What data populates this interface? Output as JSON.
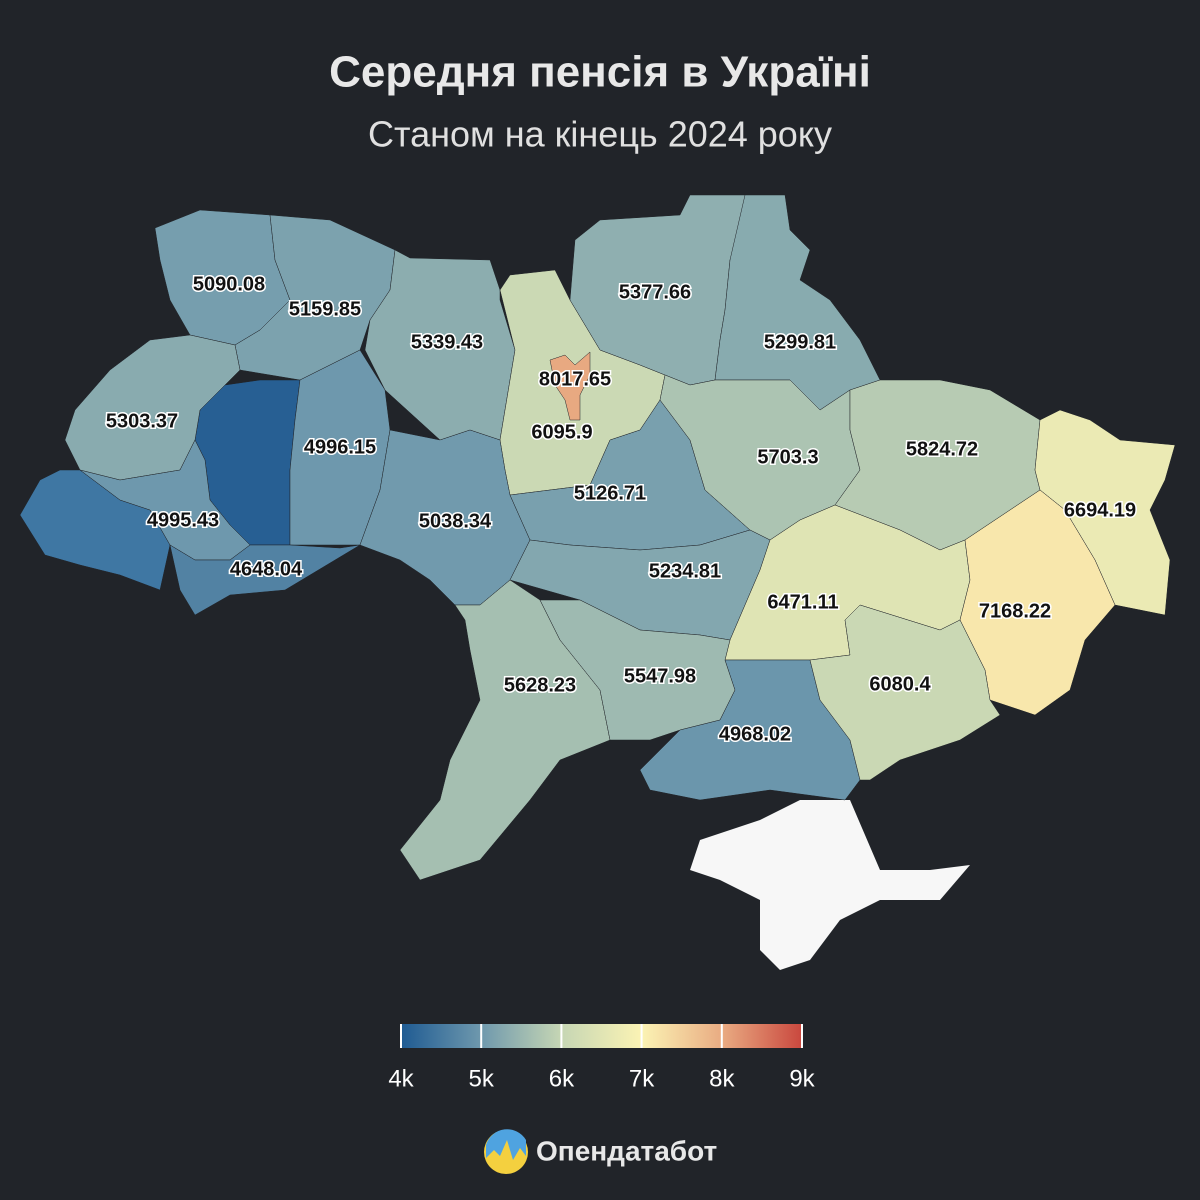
{
  "title": "Середня пенсія в Україні",
  "subtitle": "Станом на кінець 2024 року",
  "map": {
    "type": "choropleth",
    "values": [
      5090.08,
      5159.85,
      5339.43,
      8017.65,
      6095.9,
      5377.66,
      5299.81,
      5303.37,
      4996.15,
      4995.43,
      4648.04,
      5038.34,
      5126.71,
      5703.3,
      5824.72,
      6694.19,
      5234.81,
      6471.11,
      7168.22,
      5628.23,
      5547.98,
      4968.02,
      6080.4
    ],
    "colorbar": {
      "lim": [
        4000,
        9000
      ],
      "ticks": [
        {
          "value": 4000,
          "label": "4k"
        },
        {
          "value": 5000,
          "label": "5k"
        },
        {
          "value": 6000,
          "label": "6k"
        },
        {
          "value": 7000,
          "label": "7k"
        },
        {
          "value": 8000,
          "label": "8k"
        },
        {
          "value": 9000,
          "label": "9k"
        }
      ],
      "colors": [
        "#1e5a92",
        "#6e98ad",
        "#c6d6b4",
        "#fbf3b4",
        "#e9ab82",
        "#c9463d"
      ]
    }
  },
  "brand": "Опендатабот"
}
